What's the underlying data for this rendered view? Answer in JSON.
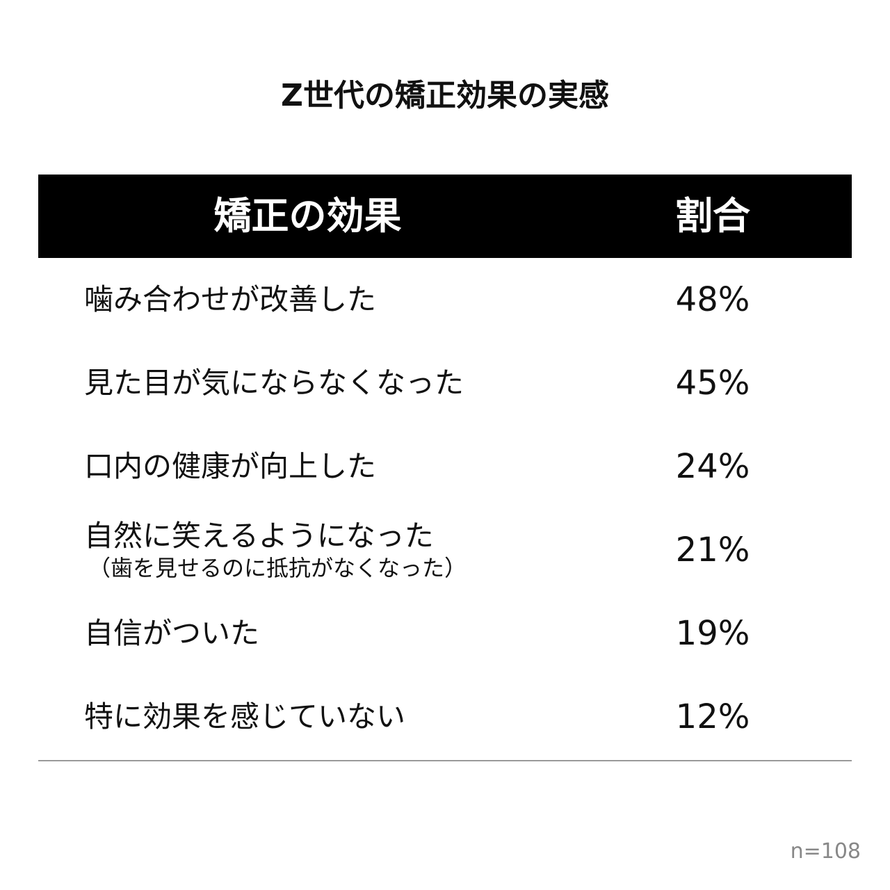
{
  "chart_data": {
    "type": "table",
    "title": "Z世代の矯正効果の実感",
    "columns": [
      "矯正の効果",
      "割合"
    ],
    "rows": [
      {
        "label": "噛み合わせが改善した",
        "sublabel": "",
        "value": 48,
        "display": "48%"
      },
      {
        "label": "見た目が気にならなくなった",
        "sublabel": "",
        "value": 45,
        "display": "45%"
      },
      {
        "label": "口内の健康が向上した",
        "sublabel": "",
        "value": 24,
        "display": "24%"
      },
      {
        "label": "自然に笑えるようになった",
        "sublabel": "（歯を見せるのに抵抗がなくなった）",
        "value": 21,
        "display": "21%"
      },
      {
        "label": "自信がついた",
        "sublabel": "",
        "value": 19,
        "display": "19%"
      },
      {
        "label": "特に効果を感じていない",
        "sublabel": "",
        "value": 12,
        "display": "12%"
      }
    ],
    "note": "n=108"
  }
}
